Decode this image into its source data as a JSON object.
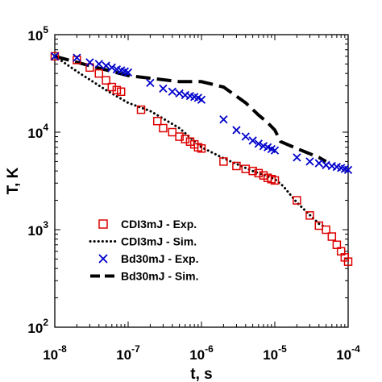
{
  "chart_data": {
    "type": "scatter",
    "xlabel": "t, s",
    "ylabel": "T, K",
    "xscale": "log",
    "yscale": "log",
    "xlim": [
      1e-08,
      0.0001
    ],
    "ylim": [
      100,
      100000
    ],
    "x_ticks": [
      {
        "base": "10",
        "exp": "-8",
        "value": 1e-08
      },
      {
        "base": "10",
        "exp": "-7",
        "value": 1e-07
      },
      {
        "base": "10",
        "exp": "-6",
        "value": 1e-06
      },
      {
        "base": "10",
        "exp": "-5",
        "value": 1e-05
      },
      {
        "base": "10",
        "exp": "-4",
        "value": 0.0001
      }
    ],
    "y_ticks": [
      {
        "base": "10",
        "exp": "2",
        "value": 100
      },
      {
        "base": "10",
        "exp": "3",
        "value": 1000
      },
      {
        "base": "10",
        "exp": "4",
        "value": 10000
      },
      {
        "base": "10",
        "exp": "5",
        "value": 100000
      }
    ],
    "grid": false,
    "legend_position": "bottom-left",
    "series": [
      {
        "name": "CDI3mJ - Exp.",
        "style": "square-marker",
        "color": "#dd0000",
        "points": [
          [
            1e-08,
            60000
          ],
          [
            2e-08,
            55000
          ],
          [
            3e-08,
            46000
          ],
          [
            4e-08,
            40000
          ],
          [
            5e-08,
            34000
          ],
          [
            6e-08,
            29000
          ],
          [
            7e-08,
            27000
          ],
          [
            8e-08,
            26000
          ],
          [
            1.5e-07,
            17000
          ],
          [
            2.5e-07,
            13000
          ],
          [
            3e-07,
            11000
          ],
          [
            4e-07,
            10000
          ],
          [
            5e-07,
            9000
          ],
          [
            6e-07,
            8500
          ],
          [
            7e-07,
            8000
          ],
          [
            8e-07,
            7500
          ],
          [
            9e-07,
            7000
          ],
          [
            1e-06,
            6800
          ],
          [
            2e-06,
            5000
          ],
          [
            3e-06,
            4500
          ],
          [
            4e-06,
            4200
          ],
          [
            5e-06,
            4000
          ],
          [
            6e-06,
            3800
          ],
          [
            7e-06,
            3600
          ],
          [
            8e-06,
            3400
          ],
          [
            9e-06,
            3300
          ],
          [
            1e-05,
            3200
          ],
          [
            2e-05,
            2000
          ],
          [
            3e-05,
            1400
          ],
          [
            4e-05,
            1100
          ],
          [
            5e-05,
            1000
          ],
          [
            6e-05,
            850
          ],
          [
            7e-05,
            700
          ],
          [
            8e-05,
            600
          ],
          [
            9e-05,
            520
          ],
          [
            0.0001,
            470
          ]
        ]
      },
      {
        "name": "CDI3mJ - Sim.",
        "style": "dotted-line",
        "color": "#000000",
        "points": [
          [
            1e-08,
            60000
          ],
          [
            2e-08,
            42000
          ],
          [
            5e-08,
            27000
          ],
          [
            1e-07,
            20000
          ],
          [
            2e-07,
            16500
          ],
          [
            5e-07,
            11000
          ],
          [
            1e-06,
            7000
          ],
          [
            2e-06,
            5400
          ],
          [
            5e-06,
            4000
          ],
          [
            1e-05,
            3300
          ],
          [
            1.3e-05,
            2800
          ],
          [
            2e-05,
            1900
          ],
          [
            4e-05,
            1150
          ],
          [
            5e-05,
            1050
          ]
        ]
      },
      {
        "name": "Bd30mJ - Exp.",
        "style": "x-marker",
        "color": "#0000cc",
        "points": [
          [
            1e-08,
            60000
          ],
          [
            2e-08,
            58000
          ],
          [
            3e-08,
            52000
          ],
          [
            4e-08,
            50000
          ],
          [
            5e-08,
            48000
          ],
          [
            6e-08,
            46000
          ],
          [
            7e-08,
            44000
          ],
          [
            8e-08,
            43000
          ],
          [
            9e-08,
            42000
          ],
          [
            1e-07,
            41000
          ],
          [
            2e-07,
            32000
          ],
          [
            3e-07,
            28000
          ],
          [
            4e-07,
            26000
          ],
          [
            5e-07,
            25000
          ],
          [
            6e-07,
            24000
          ],
          [
            7e-07,
            23500
          ],
          [
            8e-07,
            23000
          ],
          [
            9e-07,
            22500
          ],
          [
            1e-06,
            21500
          ],
          [
            2e-06,
            13500
          ],
          [
            3e-06,
            10500
          ],
          [
            4e-06,
            9000
          ],
          [
            5e-06,
            8200
          ],
          [
            6e-06,
            7600
          ],
          [
            7e-06,
            7200
          ],
          [
            8e-06,
            7000
          ],
          [
            9e-06,
            6700
          ],
          [
            1e-05,
            6500
          ],
          [
            2e-05,
            5500
          ],
          [
            3e-05,
            5000
          ],
          [
            4e-05,
            4800
          ],
          [
            5e-05,
            4600
          ],
          [
            6e-05,
            4500
          ],
          [
            7e-05,
            4400
          ],
          [
            8e-05,
            4300
          ],
          [
            9e-05,
            4200
          ],
          [
            0.0001,
            4100
          ]
        ]
      },
      {
        "name": "Bd30mJ - Sim.",
        "style": "dashed-line",
        "color": "#000000",
        "points": [
          [
            1e-08,
            60000
          ],
          [
            3e-08,
            48000
          ],
          [
            1e-07,
            38000
          ],
          [
            5e-07,
            33000
          ],
          [
            1e-06,
            33000
          ],
          [
            2e-06,
            29000
          ],
          [
            4e-06,
            20000
          ],
          [
            6e-06,
            15000
          ],
          [
            8e-06,
            12500
          ],
          [
            1e-05,
            10500
          ],
          [
            1.2e-05,
            8000
          ],
          [
            2e-05,
            6800
          ],
          [
            4e-05,
            5500
          ],
          [
            5e-05,
            5000
          ]
        ]
      }
    ]
  }
}
